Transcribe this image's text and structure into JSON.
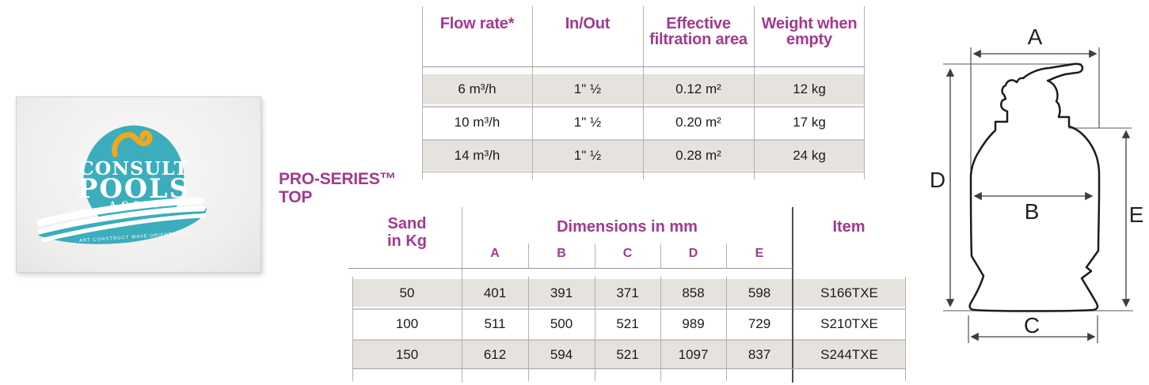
{
  "logo": {
    "name_line1": "CONSULT",
    "name_line2": "POOLS",
    "name_line3": "A.C.D.D.",
    "tagline": "ART CONSTRUCT WAVE ORIENTATION"
  },
  "series": {
    "line1": "PRO-SERIES™",
    "line2": "TOP"
  },
  "flow_table": {
    "headers": [
      "Flow rate*",
      "In/Out",
      "Effective filtration area",
      "Weight when empty"
    ],
    "rows": [
      [
        "6 m³/h",
        "1\" ½",
        "0.12 m²",
        "12 kg"
      ],
      [
        "10 m³/h",
        "1\" ½",
        "0.20 m²",
        "17 kg"
      ],
      [
        "14 m³/h",
        "1\" ½",
        "0.28 m²",
        "24 kg"
      ]
    ]
  },
  "size_table": {
    "sand_header_l1": "Sand",
    "sand_header_l2": "in Kg",
    "dims_header": "Dimensions in mm",
    "dim_letters": [
      "A",
      "B",
      "C",
      "D",
      "E"
    ],
    "item_header": "Item",
    "rows": [
      [
        "50",
        "401",
        "391",
        "371",
        "858",
        "598",
        "S166TXE"
      ],
      [
        "100",
        "511",
        "500",
        "521",
        "989",
        "729",
        "S210TXE"
      ],
      [
        "150",
        "612",
        "594",
        "521",
        "1097",
        "837",
        "S244TXE"
      ]
    ]
  },
  "diagram": {
    "labels": {
      "a": "A",
      "b": "B",
      "c": "C",
      "d": "D",
      "e": "E"
    }
  },
  "colors": {
    "accent_magenta": "#a23a8d",
    "row_shade": "#e6e3df",
    "logo_teal": "#3badbd",
    "logo_orange": "#f0a81c"
  }
}
